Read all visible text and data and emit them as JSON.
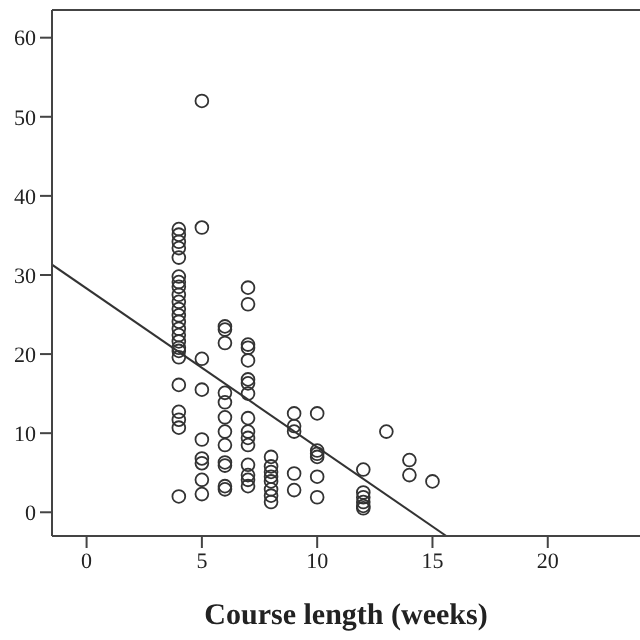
{
  "chart_data": {
    "type": "scatter",
    "xlabel": "Course length (weeks)",
    "xlim": [
      -1.5,
      24
    ],
    "xticks": [
      0,
      5,
      10,
      15,
      20
    ],
    "ylim": [
      -3,
      63.5
    ],
    "yticks": [
      0,
      10,
      20,
      30,
      40,
      50,
      60
    ],
    "marker": "circle",
    "series": [
      {
        "color": "#333333",
        "x": [
          4,
          4,
          4,
          4,
          4,
          4,
          4,
          4,
          4,
          4,
          4,
          4,
          4,
          4,
          4,
          4,
          4,
          4,
          4,
          4,
          4,
          4,
          4,
          4,
          5,
          5,
          5,
          5,
          5,
          5,
          5,
          5,
          5,
          6,
          6,
          6,
          6,
          6,
          6,
          6,
          6,
          6,
          6,
          6,
          6,
          7,
          7,
          7,
          7,
          7,
          7,
          7,
          7,
          7,
          7,
          7,
          7,
          7,
          7,
          7,
          7,
          8,
          8,
          8,
          8,
          8,
          8,
          8,
          8,
          9,
          9,
          9,
          9,
          9,
          10,
          10,
          10,
          10,
          10,
          10,
          12,
          12,
          12,
          12,
          12,
          12,
          13,
          14,
          14,
          15
        ],
        "values": [
          35.8,
          35.1,
          34.2,
          33.4,
          32.2,
          29.8,
          29.1,
          28.5,
          27.5,
          26.6,
          25.7,
          24.9,
          24.1,
          23.2,
          22.4,
          21.6,
          20.8,
          20.4,
          19.6,
          16.1,
          12.7,
          11.7,
          10.7,
          2.0,
          52,
          36,
          19.4,
          15.5,
          9.2,
          6.8,
          6.2,
          4.1,
          2.3,
          23.5,
          23.1,
          21.4,
          15.1,
          13.9,
          12.0,
          10.2,
          8.5,
          6.3,
          5.9,
          3.3,
          2.9,
          28.4,
          26.3,
          21.2,
          20.8,
          19.2,
          16.8,
          16.3,
          15.0,
          11.9,
          10.2,
          9.4,
          8.5,
          6.0,
          4.7,
          4.1,
          3.3,
          7.0,
          5.8,
          5.1,
          4.5,
          3.9,
          2.9,
          2.1,
          1.3,
          12.5,
          10.9,
          10.2,
          4.9,
          2.8,
          12.5,
          7.8,
          7.0,
          4.5,
          1.9,
          7.4,
          5.4,
          2.5,
          1.9,
          1.3,
          0.8,
          0.5,
          10.2,
          6.6,
          4.7,
          3.9
        ]
      },
      {
        "type": "line",
        "marker": "none",
        "color": "#333333",
        "x": [
          -1.5,
          15.6
        ],
        "values": [
          31.3,
          -3
        ]
      }
    ]
  }
}
